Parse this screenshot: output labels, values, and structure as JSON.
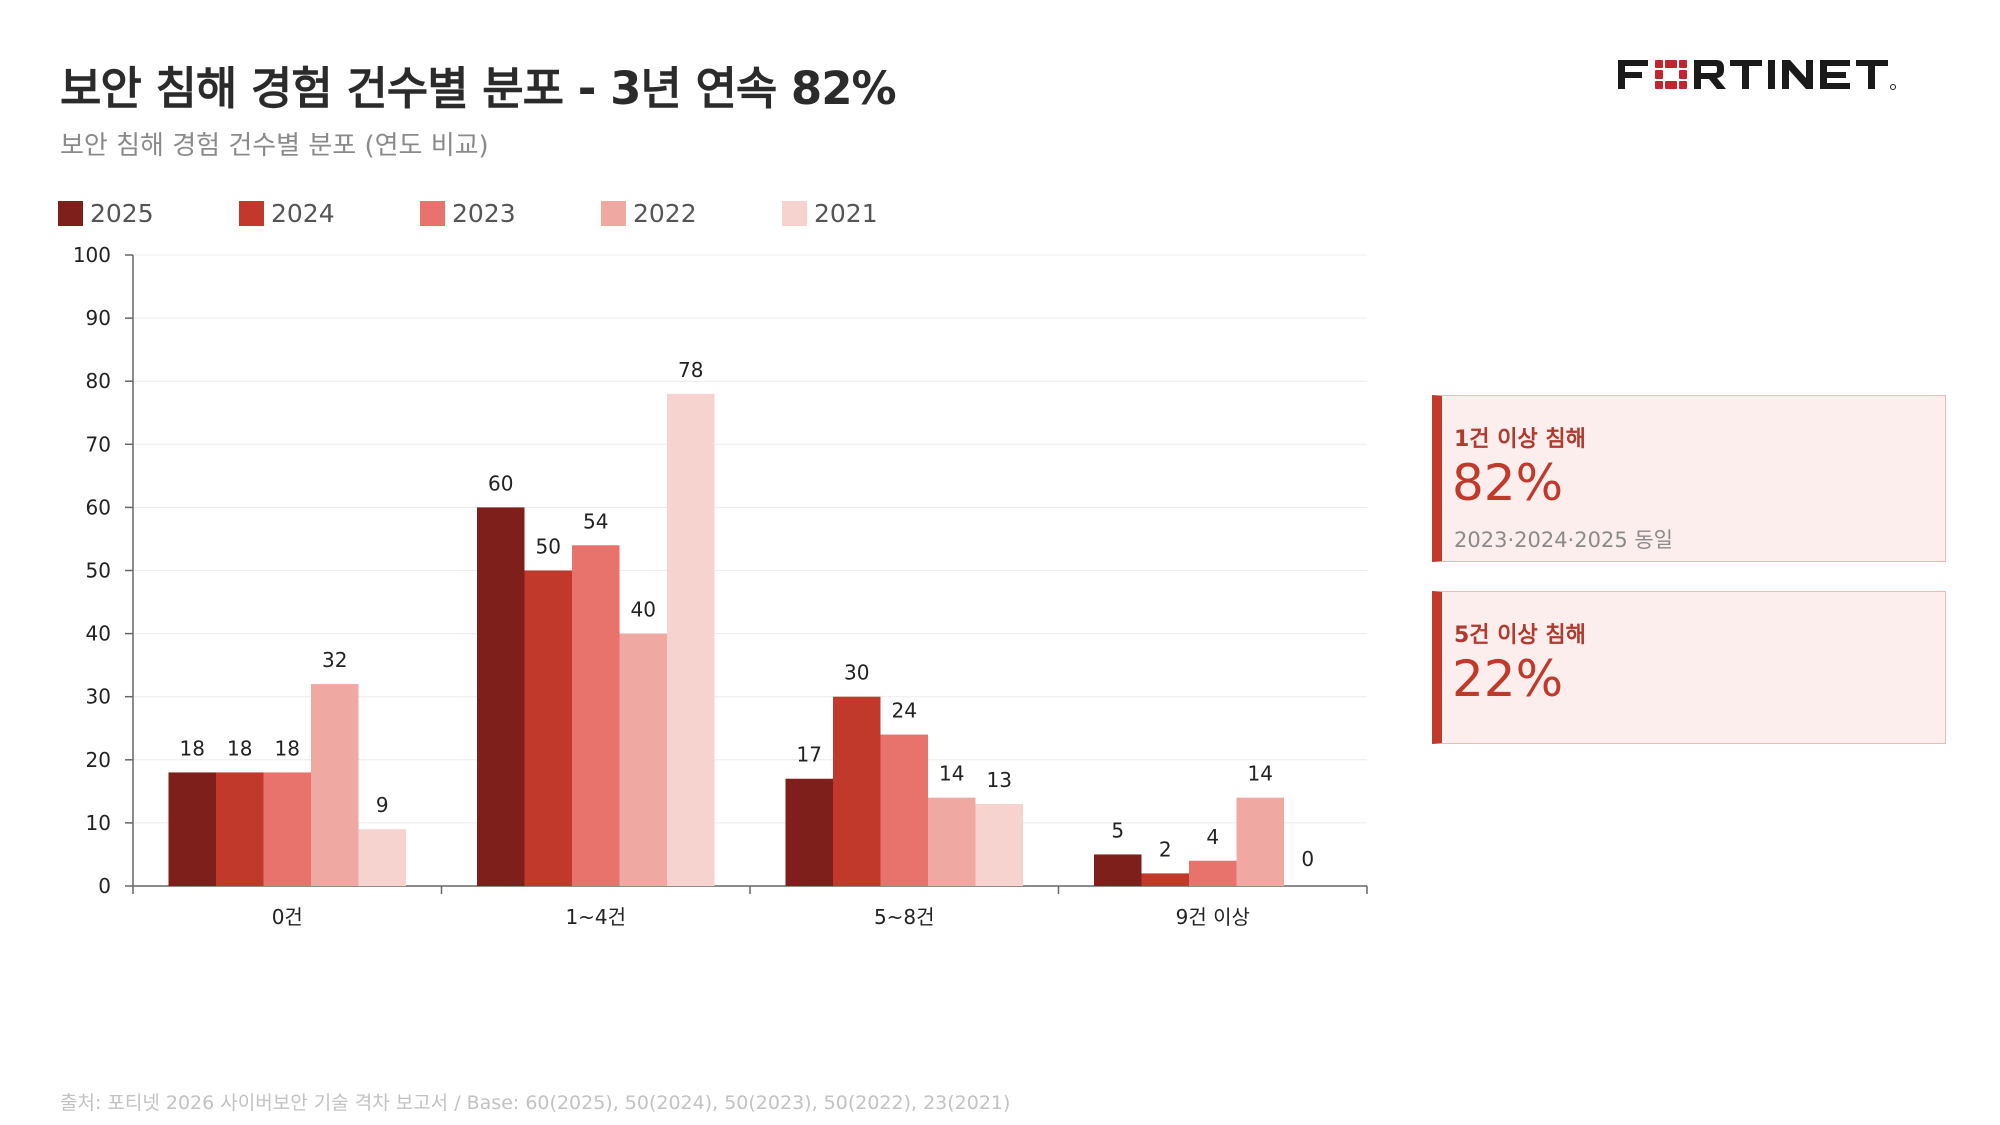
{
  "header": {
    "title": "보안 침해 경험 건수별 분포 - 3년 연속 82%",
    "subtitle": "보안 침해 경험 건수별 분포 (연도 비교)",
    "logo_text": "FORTINET"
  },
  "colors": {
    "2025": "#7f1f1c",
    "2024": "#c0392b",
    "2023": "#e8736c",
    "2022": "#f0a8a2",
    "2021": "#f7d3d0",
    "accent": "#c0392b"
  },
  "chart_data": {
    "type": "bar",
    "categories": [
      "0건",
      "1~4건",
      "5~8건",
      "9건 이상"
    ],
    "series": [
      {
        "name": "2025",
        "values": [
          18,
          60,
          17,
          5
        ]
      },
      {
        "name": "2024",
        "values": [
          18,
          50,
          30,
          2
        ]
      },
      {
        "name": "2023",
        "values": [
          18,
          54,
          24,
          4
        ]
      },
      {
        "name": "2022",
        "values": [
          32,
          40,
          14,
          14
        ]
      },
      {
        "name": "2021",
        "values": [
          9,
          78,
          13,
          0
        ]
      }
    ],
    "ylim": [
      0,
      100
    ],
    "yticks": [
      0,
      10,
      20,
      30,
      40,
      50,
      60,
      70,
      80,
      90,
      100
    ],
    "grid": true,
    "legend_position": "top-left",
    "data_labels": true
  },
  "cards": [
    {
      "label": "1건 이상 침해",
      "value": "82%",
      "note": "2023·2024·2025 동일"
    },
    {
      "label": "5건 이상 침해",
      "value": "22%",
      "note": ""
    }
  ],
  "footer": {
    "source": "출처: 포티넷 2026 사이버보안 기술 격차 보고서 / Base: 60(2025), 50(2024), 50(2023), 50(2022), 23(2021)"
  }
}
